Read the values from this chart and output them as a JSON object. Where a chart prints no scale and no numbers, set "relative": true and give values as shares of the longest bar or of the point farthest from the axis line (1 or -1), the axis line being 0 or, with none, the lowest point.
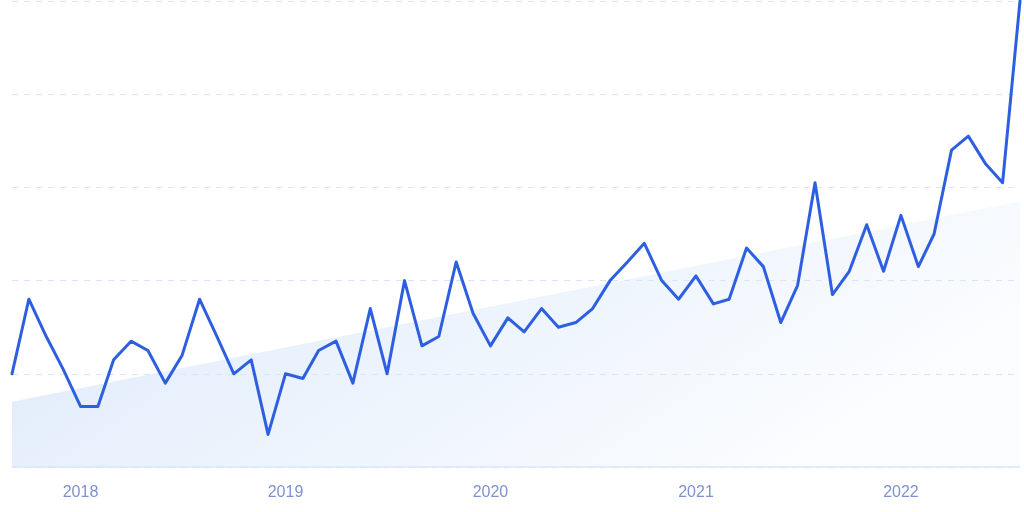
{
  "chart_data": {
    "type": "line",
    "relative": true,
    "x": [
      "2017-09",
      "2017-10",
      "2017-11",
      "2017-12",
      "2018-01",
      "2018-02",
      "2018-03",
      "2018-04",
      "2018-05",
      "2018-06",
      "2018-07",
      "2018-08",
      "2018-09",
      "2018-10",
      "2018-11",
      "2018-12",
      "2019-01",
      "2019-02",
      "2019-03",
      "2019-04",
      "2019-05",
      "2019-06",
      "2019-07",
      "2019-08",
      "2019-09",
      "2019-10",
      "2019-11",
      "2019-12",
      "2020-01",
      "2020-02",
      "2020-03",
      "2020-04",
      "2020-05",
      "2020-06",
      "2020-07",
      "2020-08",
      "2020-09",
      "2020-10",
      "2020-11",
      "2020-12",
      "2021-01",
      "2021-02",
      "2021-03",
      "2021-04",
      "2021-05",
      "2021-06",
      "2021-07",
      "2021-08",
      "2021-09",
      "2021-10",
      "2021-11",
      "2021-12",
      "2022-01",
      "2022-02",
      "2022-03",
      "2022-04",
      "2022-05",
      "2022-06",
      "2022-07",
      "2022-08"
    ],
    "series": [
      {
        "type": "area",
        "x": [
          "2017-09",
          "2022-08"
        ],
        "values": [
          0.14,
          0.57
        ],
        "color": "#dae8fa"
      },
      {
        "color": "#2d5fe0",
        "values": [
          0.2,
          0.36,
          0.28,
          0.21,
          0.13,
          0.13,
          0.23,
          0.27,
          0.25,
          0.18,
          0.24,
          0.36,
          0.28,
          0.2,
          0.23,
          0.07,
          0.2,
          0.19,
          0.25,
          0.27,
          0.18,
          0.34,
          0.2,
          0.4,
          0.26,
          0.28,
          0.44,
          0.33,
          0.26,
          0.32,
          0.29,
          0.34,
          0.3,
          0.31,
          0.34,
          0.4,
          0.44,
          0.48,
          0.4,
          0.36,
          0.41,
          0.35,
          0.36,
          0.47,
          0.43,
          0.31,
          0.39,
          0.61,
          0.37,
          0.42,
          0.52,
          0.42,
          0.54,
          0.43,
          0.5,
          0.68,
          0.71,
          0.65,
          0.61,
          1
        ]
      }
    ],
    "xlim": [
      "2017-09",
      "2022-08"
    ],
    "xticks": [
      "2018",
      "2019",
      "2020",
      "2021",
      "2022"
    ],
    "grid": "y",
    "marker": "none",
    "line_style": "solid"
  }
}
